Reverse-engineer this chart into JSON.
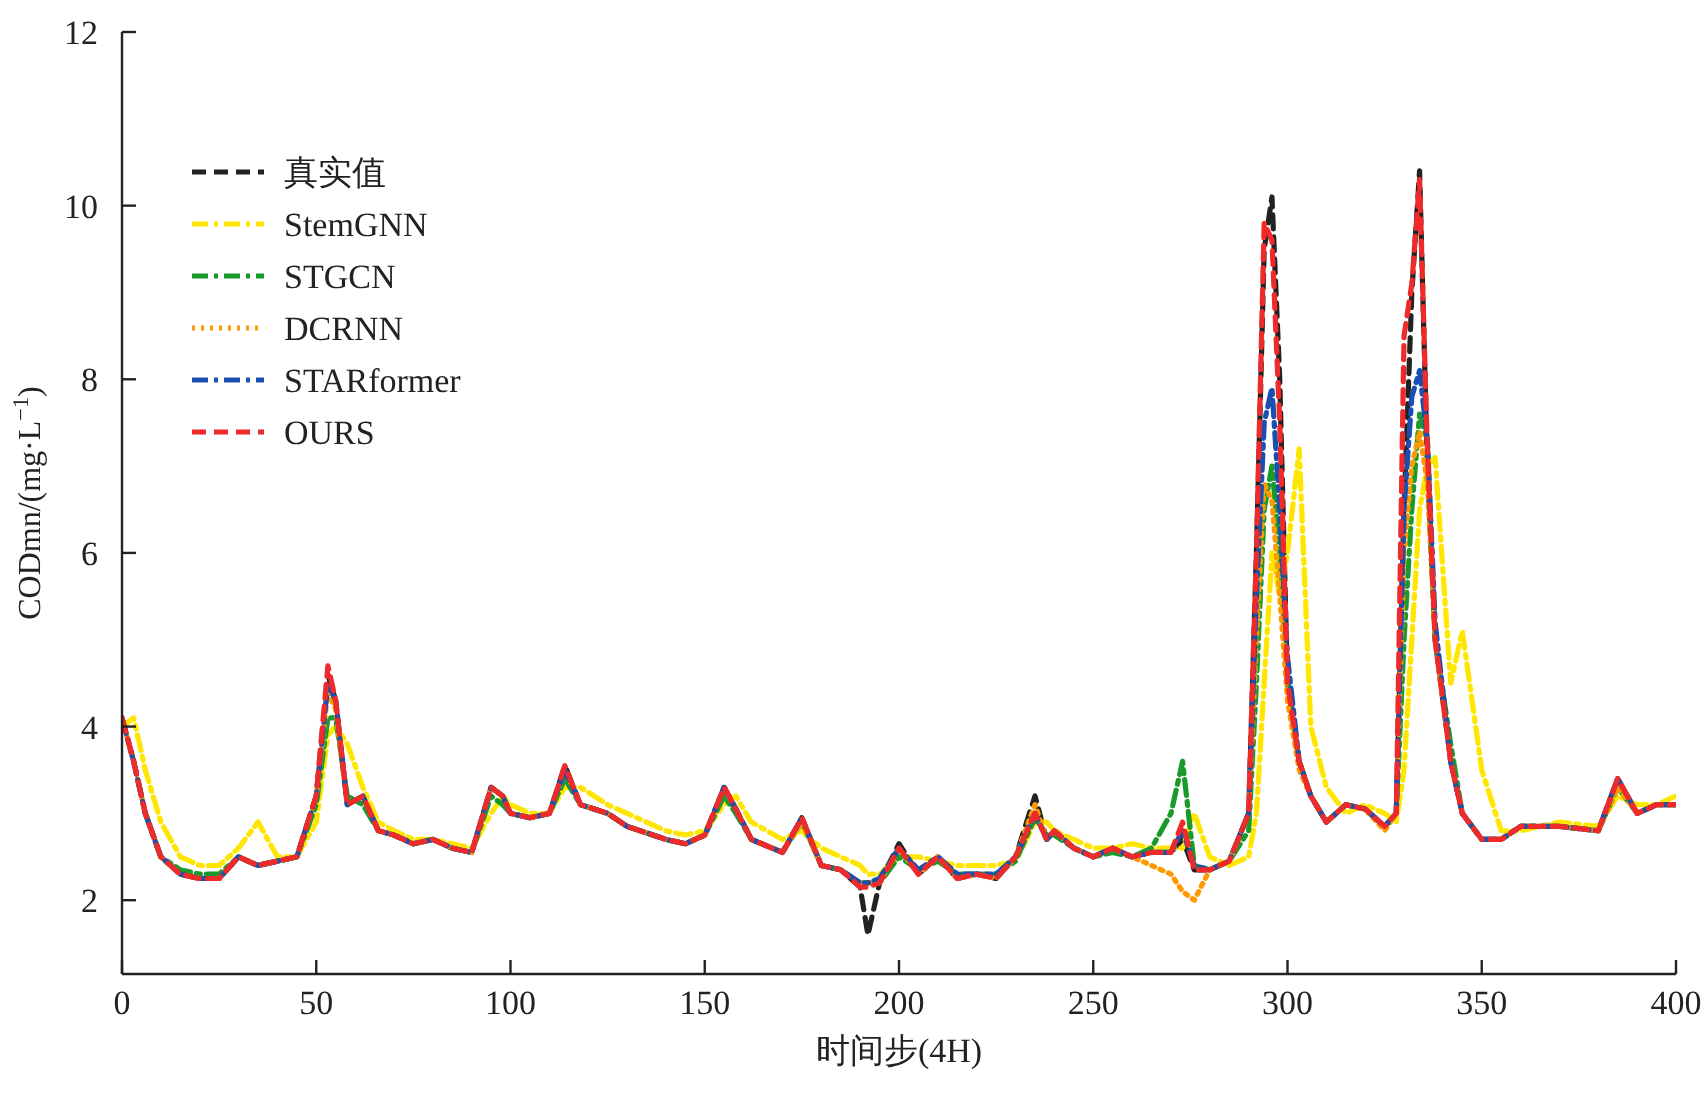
{
  "chart_data": {
    "type": "line",
    "xlabel": "时间步(4H)",
    "ylabel": "CODmn/(mg·L$^{−1}$)",
    "xlim": [
      0,
      400
    ],
    "ylim": [
      1.15,
      12
    ],
    "xticks": [
      0,
      50,
      100,
      150,
      200,
      250,
      300,
      350,
      400
    ],
    "yticks": [
      2,
      4,
      6,
      8,
      10,
      12
    ],
    "grid": false,
    "legend": "top left",
    "marker": "none",
    "x": [
      0,
      3,
      6,
      10,
      15,
      20,
      25,
      30,
      35,
      40,
      45,
      50,
      53,
      55,
      58,
      62,
      66,
      70,
      75,
      80,
      85,
      90,
      95,
      98,
      100,
      105,
      110,
      114,
      118,
      125,
      130,
      140,
      145,
      150,
      155,
      158,
      162,
      170,
      175,
      180,
      185,
      190,
      192,
      195,
      200,
      205,
      210,
      215,
      220,
      225,
      230,
      235,
      238,
      240,
      245,
      250,
      255,
      260,
      265,
      270,
      273,
      276,
      280,
      285,
      290,
      292,
      294,
      296,
      298,
      300,
      303,
      306,
      310,
      315,
      320,
      325,
      328,
      330,
      332,
      334,
      336,
      338,
      342,
      345,
      350,
      355,
      360,
      370,
      380,
      385,
      390,
      395,
      400
    ],
    "series": [
      {
        "name": "真实值",
        "color": "#222222",
        "line_style": "dashed",
        "values": [
          4.1,
          3.6,
          3.0,
          2.5,
          2.3,
          2.25,
          2.25,
          2.5,
          2.4,
          2.45,
          2.5,
          3.2,
          4.6,
          4.3,
          3.1,
          3.2,
          2.8,
          2.75,
          2.65,
          2.7,
          2.6,
          2.55,
          3.3,
          3.2,
          3.0,
          2.95,
          3.0,
          3.55,
          3.1,
          3.0,
          2.85,
          2.7,
          2.65,
          2.75,
          3.3,
          3.05,
          2.7,
          2.55,
          2.95,
          2.4,
          2.35,
          2.15,
          1.6,
          2.2,
          2.65,
          2.3,
          2.5,
          2.25,
          2.3,
          2.25,
          2.5,
          3.2,
          2.7,
          2.8,
          2.6,
          2.5,
          2.6,
          2.5,
          2.55,
          2.55,
          2.7,
          2.35,
          2.35,
          2.45,
          3.0,
          6.0,
          9.5,
          10.1,
          8.0,
          4.5,
          3.6,
          3.2,
          2.9,
          3.1,
          3.05,
          2.85,
          3.0,
          6.5,
          9.0,
          10.4,
          7.0,
          5.0,
          3.6,
          3.0,
          2.7,
          2.7,
          2.85,
          2.85,
          2.8,
          3.4,
          3.0,
          3.1,
          3.1
        ]
      },
      {
        "name": "StemGNN",
        "color": "#ffe600",
        "line_style": "dashdot",
        "values": [
          4.0,
          4.1,
          3.5,
          2.9,
          2.5,
          2.4,
          2.4,
          2.6,
          2.9,
          2.5,
          2.5,
          2.9,
          3.9,
          4.0,
          3.8,
          3.3,
          2.9,
          2.8,
          2.7,
          2.7,
          2.65,
          2.6,
          3.0,
          3.2,
          3.1,
          3.0,
          3.0,
          3.3,
          3.3,
          3.1,
          3.0,
          2.8,
          2.75,
          2.8,
          3.1,
          3.2,
          2.9,
          2.7,
          2.8,
          2.6,
          2.5,
          2.4,
          2.3,
          2.3,
          2.5,
          2.5,
          2.45,
          2.4,
          2.4,
          2.4,
          2.45,
          2.9,
          2.9,
          2.8,
          2.7,
          2.6,
          2.6,
          2.65,
          2.6,
          2.6,
          2.6,
          3.0,
          2.5,
          2.4,
          2.5,
          3.0,
          4.5,
          6.0,
          5.5,
          6.0,
          7.2,
          4.0,
          3.3,
          3.0,
          3.1,
          3.0,
          2.9,
          3.5,
          5.0,
          6.5,
          7.0,
          7.1,
          4.5,
          5.1,
          3.5,
          2.8,
          2.8,
          2.9,
          2.85,
          3.2,
          3.1,
          3.1,
          3.2
        ]
      },
      {
        "name": "STGCN",
        "color": "#1a9a2a",
        "line_style": "dashdot",
        "values": [
          null,
          null,
          3.0,
          2.5,
          2.35,
          2.3,
          2.3,
          2.5,
          2.4,
          2.45,
          2.5,
          3.1,
          4.1,
          4.1,
          3.2,
          3.1,
          2.8,
          2.75,
          2.65,
          2.7,
          2.6,
          2.55,
          3.2,
          3.1,
          3.0,
          2.95,
          3.0,
          3.4,
          3.1,
          3.0,
          2.85,
          2.7,
          2.65,
          2.75,
          3.2,
          3.0,
          2.7,
          2.55,
          2.9,
          2.4,
          2.35,
          2.2,
          2.2,
          2.2,
          2.5,
          2.35,
          2.45,
          2.3,
          2.3,
          2.3,
          2.45,
          2.95,
          2.75,
          2.75,
          2.6,
          2.5,
          2.55,
          2.5,
          2.6,
          3.0,
          3.6,
          2.4,
          2.35,
          2.45,
          2.8,
          4.5,
          6.5,
          7.0,
          6.0,
          4.5,
          3.6,
          3.2,
          2.9,
          3.1,
          3.05,
          2.85,
          3.0,
          5.0,
          6.5,
          7.6,
          7.3,
          5.0,
          3.8,
          3.0,
          2.7,
          2.7,
          2.85,
          2.85,
          2.8,
          3.3,
          3.0,
          3.1,
          3.1
        ]
      },
      {
        "name": "DCRNN",
        "color": "#ff9900",
        "line_style": "dotted",
        "values": [
          4.1,
          3.6,
          3.0,
          2.5,
          2.3,
          2.25,
          2.25,
          2.5,
          2.4,
          2.45,
          2.5,
          3.2,
          4.4,
          4.2,
          3.1,
          3.2,
          2.8,
          2.75,
          2.65,
          2.7,
          2.6,
          2.55,
          3.3,
          3.2,
          3.0,
          2.95,
          3.0,
          3.5,
          3.1,
          3.0,
          2.85,
          2.7,
          2.65,
          2.75,
          3.3,
          3.05,
          2.7,
          2.55,
          2.9,
          2.4,
          2.35,
          2.2,
          2.2,
          2.2,
          2.6,
          2.3,
          2.5,
          2.25,
          2.3,
          2.25,
          2.5,
          3.1,
          2.7,
          2.8,
          2.6,
          2.5,
          2.6,
          2.5,
          2.4,
          2.3,
          2.1,
          2.0,
          2.35,
          2.45,
          3.0,
          5.0,
          6.8,
          6.6,
          5.5,
          4.3,
          3.5,
          3.2,
          2.9,
          3.1,
          3.05,
          2.8,
          3.0,
          6.0,
          7.0,
          7.4,
          6.8,
          5.0,
          3.6,
          3.0,
          2.7,
          2.7,
          2.85,
          2.85,
          2.8,
          3.3,
          3.0,
          3.1,
          3.1
        ]
      },
      {
        "name": "STARformer",
        "color": "#1a4fb0",
        "line_style": "dashdot",
        "values": [
          4.1,
          3.6,
          3.0,
          2.5,
          2.3,
          2.25,
          2.25,
          2.5,
          2.4,
          2.45,
          2.5,
          3.2,
          4.5,
          4.3,
          3.1,
          3.2,
          2.8,
          2.75,
          2.65,
          2.7,
          2.6,
          2.55,
          3.3,
          3.2,
          3.0,
          2.95,
          3.0,
          3.5,
          3.1,
          3.0,
          2.85,
          2.7,
          2.65,
          2.75,
          3.3,
          3.05,
          2.7,
          2.55,
          2.95,
          2.4,
          2.35,
          2.2,
          2.2,
          2.25,
          2.6,
          2.35,
          2.5,
          2.3,
          2.3,
          2.3,
          2.5,
          3.0,
          2.7,
          2.8,
          2.6,
          2.5,
          2.6,
          2.5,
          2.55,
          2.55,
          2.8,
          2.4,
          2.35,
          2.45,
          3.0,
          5.5,
          7.5,
          7.9,
          6.5,
          4.8,
          3.6,
          3.2,
          2.9,
          3.1,
          3.05,
          2.85,
          3.0,
          6.5,
          7.8,
          8.1,
          7.3,
          5.2,
          3.6,
          3.0,
          2.7,
          2.7,
          2.85,
          2.85,
          2.8,
          3.4,
          3.0,
          3.1,
          3.1
        ]
      },
      {
        "name": "OURS",
        "color": "#ee2a2a",
        "line_style": "dashed",
        "values": [
          4.1,
          3.6,
          3.0,
          2.5,
          2.3,
          2.25,
          2.25,
          2.5,
          2.4,
          2.45,
          2.5,
          3.2,
          4.7,
          4.3,
          3.1,
          3.2,
          2.8,
          2.75,
          2.65,
          2.7,
          2.6,
          2.55,
          3.3,
          3.2,
          3.0,
          2.95,
          3.0,
          3.55,
          3.1,
          3.0,
          2.85,
          2.7,
          2.65,
          2.75,
          3.3,
          3.05,
          2.7,
          2.55,
          2.95,
          2.4,
          2.35,
          2.15,
          2.15,
          2.2,
          2.6,
          2.3,
          2.5,
          2.25,
          2.3,
          2.25,
          2.5,
          3.0,
          2.7,
          2.8,
          2.6,
          2.5,
          2.6,
          2.5,
          2.55,
          2.55,
          2.9,
          2.35,
          2.35,
          2.45,
          3.0,
          6.0,
          9.8,
          9.6,
          7.5,
          4.5,
          3.6,
          3.2,
          2.9,
          3.1,
          3.05,
          2.85,
          3.0,
          8.5,
          9.1,
          10.3,
          7.2,
          5.0,
          3.6,
          3.0,
          2.7,
          2.7,
          2.85,
          2.85,
          2.8,
          3.4,
          3.0,
          3.1,
          3.1
        ]
      }
    ]
  }
}
